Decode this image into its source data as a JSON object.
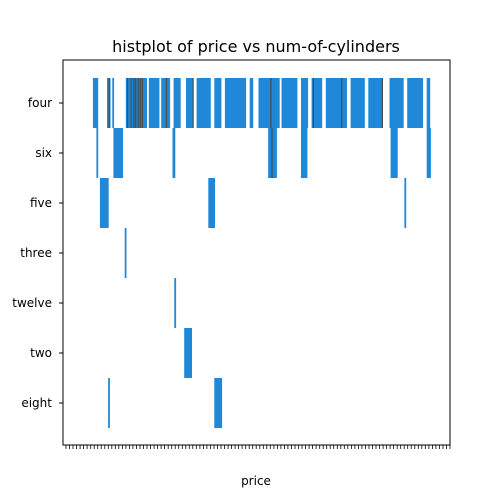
{
  "chart_data": {
    "type": "heatmap",
    "title": "histplot of price vs num-of-cylinders",
    "xlabel": "price",
    "ylabel": "",
    "categories": [
      "four",
      "six",
      "five",
      "three",
      "twelve",
      "two",
      "eight"
    ],
    "xlim": [
      0,
      1
    ],
    "grid": false,
    "legend": "none",
    "bar_color": "#1f88d8",
    "edge_color": "#4a4a4a",
    "series": [
      {
        "category": "four",
        "spans": [
          [
            0.042,
            0.057
          ],
          [
            0.082,
            0.092
          ],
          [
            0.097,
            0.102
          ],
          [
            0.135,
            0.195
          ],
          [
            0.2,
            0.23
          ],
          [
            0.235,
            0.26
          ],
          [
            0.27,
            0.29
          ],
          [
            0.305,
            0.325
          ],
          [
            0.335,
            0.375
          ],
          [
            0.385,
            0.405
          ],
          [
            0.415,
            0.475
          ],
          [
            0.485,
            0.495
          ],
          [
            0.51,
            0.57
          ],
          [
            0.575,
            0.62
          ],
          [
            0.63,
            0.65
          ],
          [
            0.66,
            0.69
          ],
          [
            0.7,
            0.76
          ],
          [
            0.77,
            0.81
          ],
          [
            0.82,
            0.86
          ],
          [
            0.88,
            0.92
          ],
          [
            0.93,
            0.975
          ],
          [
            0.985,
            0.995
          ]
        ]
      },
      {
        "category": "six",
        "spans": [
          [
            0.052,
            0.057
          ],
          [
            0.1,
            0.127
          ],
          [
            0.267,
            0.275
          ],
          [
            0.537,
            0.562
          ],
          [
            0.63,
            0.648
          ],
          [
            0.883,
            0.903
          ],
          [
            0.985,
            0.997
          ]
        ]
      },
      {
        "category": "five",
        "spans": [
          [
            0.062,
            0.087
          ],
          [
            0.368,
            0.387
          ],
          [
            0.922,
            0.927
          ]
        ]
      },
      {
        "category": "three",
        "spans": [
          [
            0.132,
            0.137
          ]
        ]
      },
      {
        "category": "twelve",
        "spans": [
          [
            0.272,
            0.277
          ]
        ]
      },
      {
        "category": "two",
        "spans": [
          [
            0.3,
            0.322
          ]
        ]
      },
      {
        "category": "eight",
        "spans": [
          [
            0.085,
            0.09
          ],
          [
            0.385,
            0.407
          ]
        ]
      }
    ],
    "dark_lines": [
      {
        "category": "four",
        "x": [
          0.088,
          0.14,
          0.15,
          0.158,
          0.163,
          0.17,
          0.176,
          0.182,
          0.25,
          0.325,
          0.545,
          0.665,
          0.745,
          0.86
        ]
      },
      {
        "category": "six",
        "x": [
          0.548
        ]
      }
    ]
  }
}
